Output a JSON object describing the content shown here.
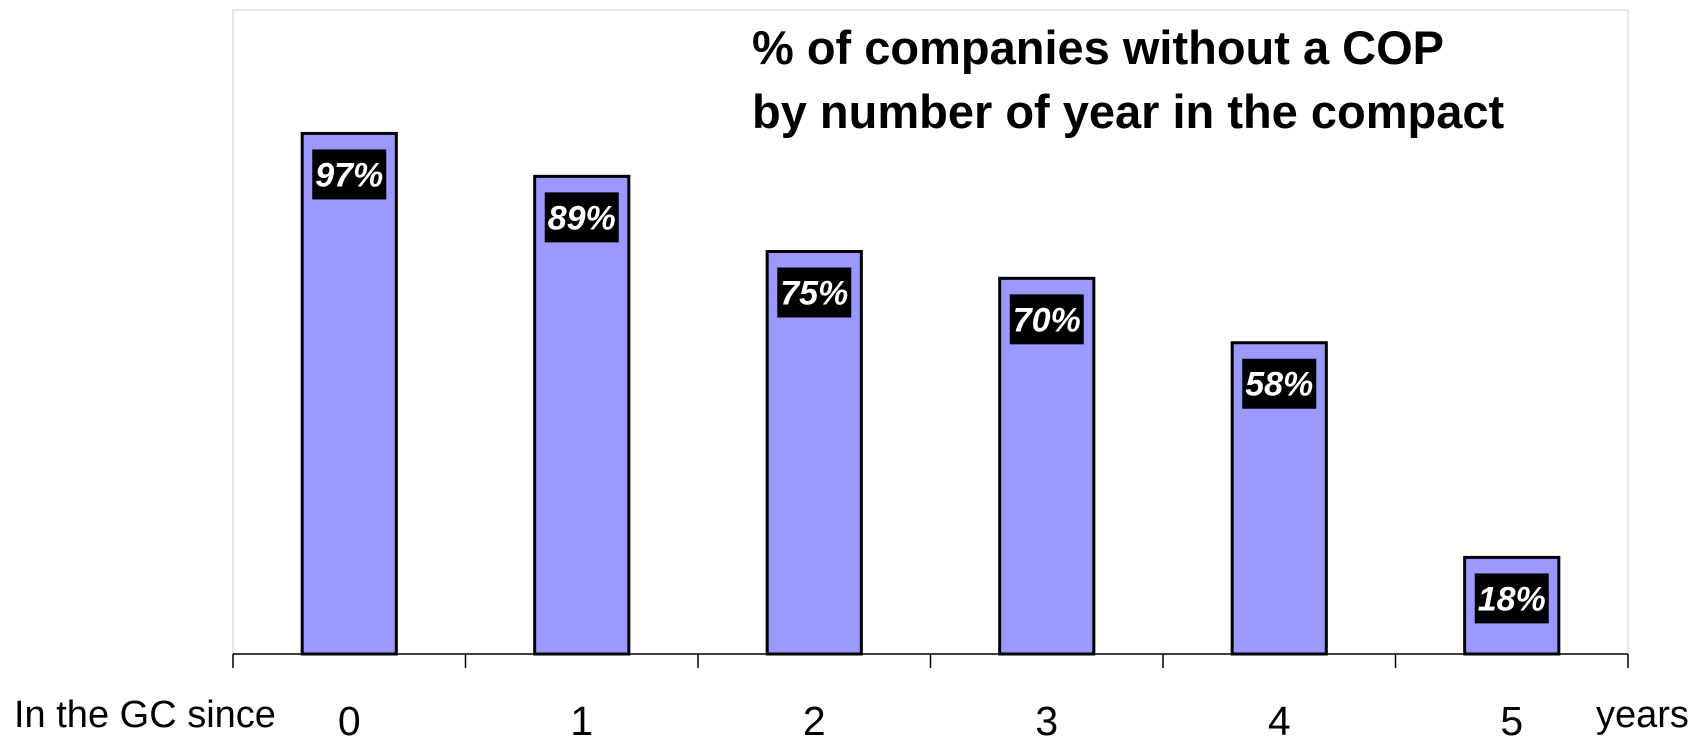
{
  "chart_data": {
    "type": "bar",
    "title_lines": [
      "% of companies without a COP",
      "by number of year in the compact"
    ],
    "categories": [
      "0",
      "1",
      "2",
      "3",
      "4",
      "5"
    ],
    "values": [
      97,
      89,
      75,
      70,
      58,
      18
    ],
    "data_labels": [
      "97%",
      "89%",
      "75%",
      "70%",
      "58%",
      "18%"
    ],
    "xlabel_prefix": "In the GC since",
    "xlabel_suffix": "years",
    "ylabel": "",
    "ylim": [
      0,
      120
    ],
    "grid": false,
    "colors": {
      "bar_fill": "#9999ff",
      "bar_stroke": "#000000",
      "label_bg": "#000000",
      "label_text": "#ffffff",
      "plot_border": "#d0d0d0"
    }
  }
}
